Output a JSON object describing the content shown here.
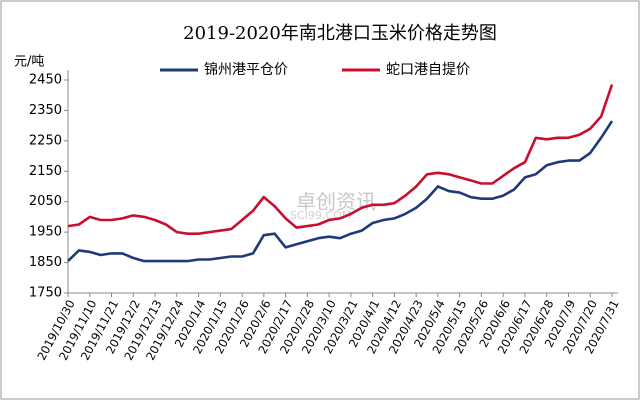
{
  "chart_data": {
    "type": "line",
    "title": "2019-2020年南北港口玉米价格走势图",
    "y_label": "元/吨",
    "watermark": "卓创资讯",
    "watermark_sub": "SCI99.COM",
    "categories": [
      "2019/10/30",
      null,
      "2019/11/10",
      null,
      "2019/11/21",
      null,
      "2019/12/2",
      null,
      "2019/12/13",
      null,
      "2019/12/24",
      null,
      "2020/1/4",
      null,
      "2020/1/15",
      null,
      "2020/1/26",
      null,
      "2020/2/6",
      null,
      "2020/2/17",
      null,
      "2020/2/28",
      null,
      "2020/3/10",
      null,
      "2020/3/21",
      null,
      "2020/4/1",
      null,
      "2020/4/12",
      null,
      "2020/4/23",
      null,
      "2020/5/4",
      null,
      "2020/5/15",
      null,
      "2020/5/26",
      null,
      "2020/6/6",
      null,
      "2020/6/17",
      null,
      "2020/6/28",
      null,
      "2020/7/9",
      null,
      "2020/7/20",
      null,
      "2020/7/31"
    ],
    "series": [
      {
        "name": "锦州港平仓价",
        "color": "#1f3a78",
        "values": [
          1855,
          1890,
          1885,
          1875,
          1880,
          1880,
          1865,
          1855,
          1855,
          1855,
          1855,
          1855,
          1860,
          1860,
          1865,
          1870,
          1870,
          1880,
          1940,
          1945,
          1900,
          1910,
          1920,
          1930,
          1935,
          1930,
          1945,
          1955,
          1980,
          1990,
          1995,
          2010,
          2030,
          2060,
          2100,
          2085,
          2080,
          2065,
          2060,
          2060,
          2070,
          2090,
          2130,
          2140,
          2170,
          2180,
          2185,
          2185,
          2210,
          2260,
          2315
        ]
      },
      {
        "name": "蛇口港自提价",
        "color": "#c8102e",
        "values": [
          1970,
          1975,
          2000,
          1990,
          1990,
          1995,
          2005,
          2000,
          1990,
          1975,
          1950,
          1945,
          1945,
          1950,
          1955,
          1960,
          1990,
          2020,
          2065,
          2035,
          1995,
          1965,
          1970,
          1975,
          1990,
          1995,
          2010,
          2030,
          2040,
          2040,
          2045,
          2070,
          2100,
          2140,
          2145,
          2140,
          2130,
          2120,
          2110,
          2110,
          2135,
          2160,
          2180,
          2260,
          2255,
          2260,
          2260,
          2270,
          2290,
          2330,
          2435
        ]
      }
    ],
    "ylim": [
      1750,
      2450
    ],
    "yticks": [
      1750,
      1850,
      1950,
      2050,
      2150,
      2250,
      2350,
      2450
    ]
  }
}
